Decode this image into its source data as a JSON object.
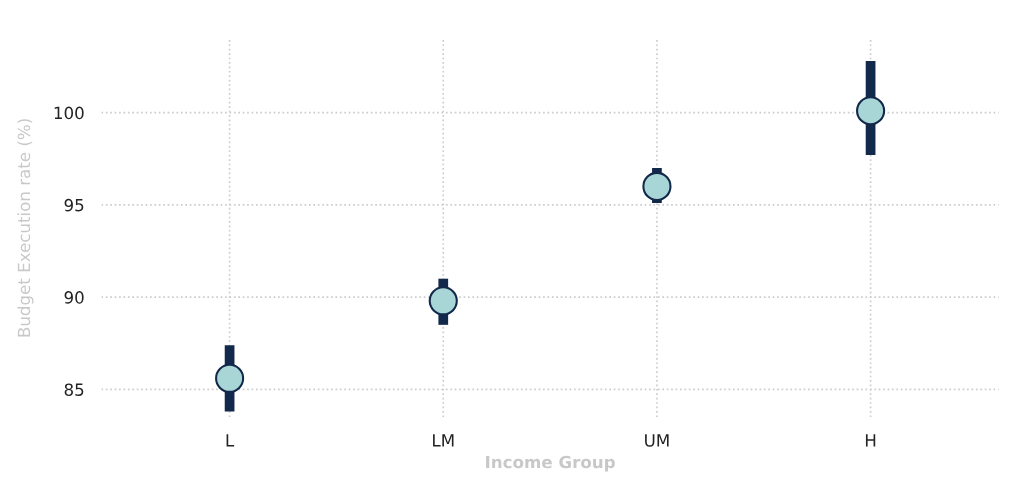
{
  "chart_data": {
    "type": "scatter",
    "xlabel": "Income Group",
    "ylabel": "Budget Execution rate (%)",
    "categories": [
      "L",
      "LM",
      "UM",
      "H"
    ],
    "series": [
      {
        "color": "#a8d5d5",
        "values": [
          85.6,
          89.8,
          96.0,
          100.1
        ],
        "errors": [
          [
            83.8,
            87.4
          ],
          [
            88.5,
            91.0
          ],
          [
            95.1,
            97.0
          ],
          [
            97.7,
            102.8
          ]
        ]
      }
    ],
    "ylim": [
      83.5,
      104
    ],
    "yticks": [
      85,
      90,
      95,
      100
    ],
    "grid": true,
    "marker": "circle"
  }
}
